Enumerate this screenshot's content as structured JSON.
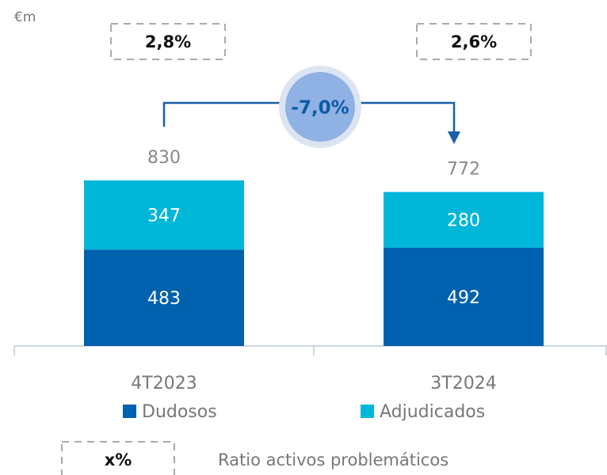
{
  "chart_data": {
    "type": "bar",
    "stacked": true,
    "unit_label": "€m",
    "categories": [
      "4T2023",
      "3T2024"
    ],
    "series": [
      {
        "name": "Dudosos",
        "color": "#0061ae",
        "values": [
          483,
          492
        ]
      },
      {
        "name": "Adjudicados",
        "color": "#00b6d9",
        "values": [
          347,
          280
        ]
      }
    ],
    "totals": [
      830,
      772
    ],
    "ratios": [
      {
        "value": 2.8,
        "label": "2,8%"
      },
      {
        "value": 2.6,
        "label": "2,6%"
      }
    ],
    "change": {
      "value": -7.0,
      "label": "-7,0%"
    },
    "ratio_legend": {
      "symbol": "x%",
      "label": "Ratio activos problemáticos"
    },
    "ylim": [
      0,
      1000
    ]
  }
}
